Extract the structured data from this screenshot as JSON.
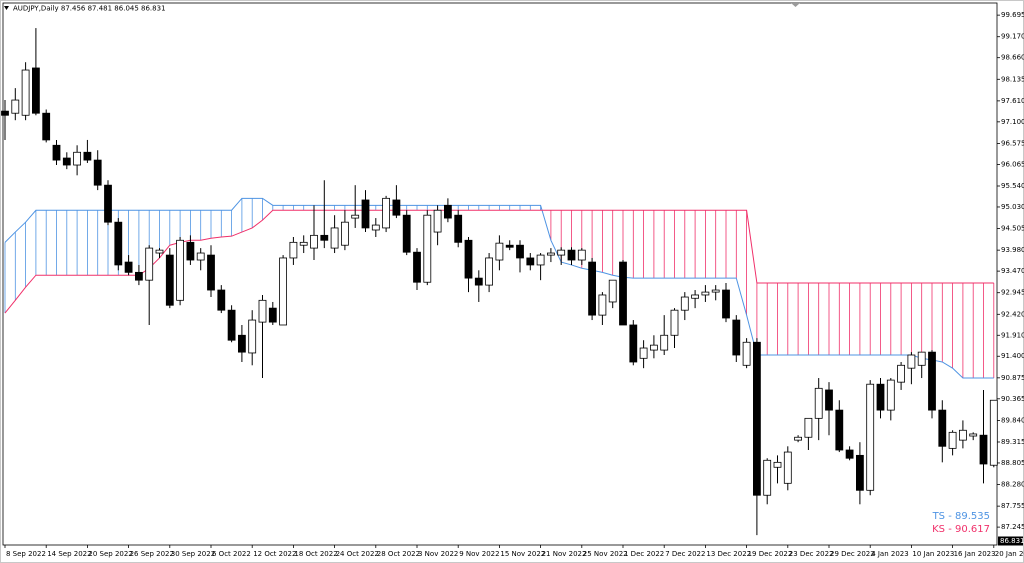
{
  "chart_data": {
    "type": "candlestick",
    "title": "AUDJPY,Daily  87.456 87.481 86.045 86.831",
    "categories": [
      "8 Sep 2022",
      null,
      null,
      null,
      "14 Sep 2022",
      null,
      null,
      null,
      "20 Sep 2022",
      null,
      null,
      null,
      "26 Sep 2022",
      null,
      null,
      null,
      "30 Sep 2022",
      null,
      null,
      null,
      "6 Oct 2022",
      null,
      null,
      null,
      "12 Oct 2022",
      null,
      null,
      null,
      "18 Oct 2022",
      null,
      null,
      null,
      "24 Oct 2022",
      null,
      null,
      null,
      "28 Oct 2022",
      null,
      null,
      null,
      "3 Nov 2022",
      null,
      null,
      null,
      "9 Nov 2022",
      null,
      null,
      null,
      "15 Nov 2022",
      null,
      null,
      null,
      "21 Nov 2022",
      null,
      null,
      null,
      "25 Nov 2022",
      null,
      null,
      null,
      "1 Dec 2022",
      null,
      null,
      null,
      "7 Dec 2022",
      null,
      null,
      null,
      "13 Dec 2022",
      null,
      null,
      null,
      "19 Dec 2022",
      null,
      null,
      null,
      "23 Dec 2022",
      null,
      null,
      null,
      "29 Dec 2022",
      null,
      null,
      null,
      "4 Jan 2023",
      null,
      null,
      null,
      "10 Jan 2023",
      null,
      null,
      null,
      "16 Jan 2023",
      null,
      null,
      null,
      "20 Jan 202"
    ],
    "ohlc": {
      "open": [
        97.36,
        97.31,
        97.26,
        98.41,
        97.31,
        96.53,
        96.22,
        96.05,
        96.36,
        96.17,
        95.56,
        94.66,
        93.69,
        93.44,
        93.25,
        93.91,
        93.86,
        92.76,
        94.17,
        93.74,
        93.86,
        93.01,
        92.52,
        91.91,
        91.48,
        92.23,
        92.57,
        92.16,
        93.79,
        94.1,
        94.03,
        94.34,
        94.03,
        94.1,
        94.76,
        95.2,
        94.47,
        94.52,
        95.2,
        94.83,
        93.93,
        93.2,
        94.42,
        95.07,
        94.83,
        94.22,
        93.3,
        93.13,
        93.74,
        94.1,
        94.1,
        93.79,
        93.62,
        93.86,
        93.86,
        93.98,
        93.74,
        93.69,
        92.4,
        92.72,
        93.69,
        92.16,
        91.35,
        91.55,
        91.55,
        91.91,
        92.52,
        92.81,
        92.89,
        92.96,
        93.01,
        92.28,
        91.18,
        91.74,
        88.02,
        88.7,
        88.31,
        89.36,
        89.43,
        89.89,
        90.58,
        90.09,
        89.12,
        88.99,
        88.14,
        90.72,
        90.09,
        90.77,
        91.11,
        91.18,
        91.5,
        90.09,
        89.16,
        89.36,
        89.46,
        89.48,
        88.75
      ],
      "high": [
        97.63,
        97.92,
        98.55,
        99.38,
        97.4,
        96.66,
        96.36,
        96.53,
        96.66,
        96.41,
        95.68,
        94.76,
        93.86,
        93.62,
        94.1,
        94.03,
        94.03,
        94.3,
        94.34,
        94.03,
        94.1,
        93.13,
        92.64,
        92.16,
        92.52,
        92.89,
        92.72,
        93.86,
        94.3,
        94.34,
        95.07,
        95.68,
        94.83,
        94.95,
        95.56,
        95.44,
        94.76,
        95.3,
        95.56,
        94.95,
        94.03,
        94.95,
        95.07,
        95.24,
        94.95,
        94.3,
        93.49,
        93.91,
        94.34,
        94.22,
        94.22,
        93.91,
        93.91,
        94.03,
        94.05,
        94.05,
        94.03,
        93.79,
        92.96,
        93.25,
        93.74,
        92.28,
        91.79,
        91.91,
        92.4,
        92.57,
        92.96,
        93.01,
        93.13,
        93.13,
        93.18,
        92.4,
        91.84,
        91.84,
        88.92,
        88.99,
        89.21,
        89.48,
        89.89,
        90.87,
        90.77,
        90.33,
        89.21,
        89.31,
        90.82,
        90.87,
        90.87,
        91.26,
        91.5,
        91.5,
        91.55,
        90.33,
        89.6,
        89.84,
        89.55,
        90.58,
        90.33
      ],
      "low": [
        96.66,
        97.14,
        97.14,
        97.26,
        96.6,
        96.05,
        95.95,
        95.8,
        96.1,
        95.44,
        94.59,
        93.49,
        93.37,
        93.13,
        92.16,
        93.79,
        92.57,
        92.64,
        93.62,
        93.49,
        92.84,
        92.45,
        91.74,
        91.26,
        91.18,
        90.87,
        92.16,
        92.16,
        93.62,
        93.91,
        93.74,
        94.03,
        93.91,
        93.98,
        94.52,
        94.42,
        94.3,
        94.42,
        94.76,
        93.86,
        93.01,
        93.13,
        94.1,
        94.66,
        94.05,
        92.96,
        92.72,
        92.96,
        93.49,
        93.98,
        93.44,
        93.49,
        93.25,
        93.69,
        93.62,
        93.62,
        93.62,
        92.28,
        92.16,
        92.57,
        92.16,
        91.18,
        91.11,
        91.35,
        91.43,
        91.6,
        92.28,
        92.57,
        92.72,
        92.76,
        92.23,
        91.26,
        91.11,
        87.05,
        87.8,
        88.31,
        88.14,
        89.31,
        89.12,
        89.36,
        89.48,
        89.07,
        88.87,
        87.8,
        88.02,
        89.89,
        89.84,
        90.58,
        90.72,
        90.87,
        89.89,
        88.82,
        88.99,
        89.16,
        89.36,
        88.31,
        88.7
      ],
      "close": [
        97.26,
        97.63,
        98.36,
        97.31,
        96.66,
        96.17,
        96.05,
        96.36,
        96.17,
        95.56,
        94.66,
        93.62,
        93.44,
        93.25,
        94.03,
        93.98,
        92.64,
        94.22,
        93.74,
        93.91,
        93.01,
        92.52,
        91.79,
        91.5,
        92.28,
        92.76,
        92.23,
        93.79,
        94.17,
        94.17,
        94.34,
        94.22,
        94.52,
        94.66,
        94.83,
        94.52,
        94.59,
        95.24,
        94.83,
        93.93,
        93.2,
        94.83,
        94.95,
        94.76,
        94.17,
        93.3,
        93.13,
        93.79,
        94.15,
        94.05,
        93.79,
        93.62,
        93.86,
        93.91,
        93.98,
        93.74,
        93.98,
        92.4,
        92.89,
        93.25,
        92.16,
        91.26,
        91.6,
        91.67,
        91.91,
        92.52,
        92.84,
        92.89,
        92.96,
        93.01,
        92.33,
        91.43,
        91.74,
        88.02,
        88.87,
        88.82,
        89.07,
        89.43,
        89.89,
        90.62,
        90.09,
        89.12,
        88.92,
        88.14,
        90.72,
        90.09,
        90.82,
        91.18,
        91.43,
        91.5,
        90.09,
        89.21,
        89.55,
        89.6,
        89.51,
        88.78,
        90.33
      ]
    },
    "up_color": "#ffffff",
    "down_color": "#000000",
    "outline_color": "#000000",
    "ichimoku": {
      "span_a": {
        "color": "#4f94e3",
        "values": [
          94.17,
          94.42,
          94.66,
          94.95,
          94.95,
          94.95,
          94.95,
          94.95,
          94.95,
          94.95,
          94.95,
          94.95,
          94.95,
          94.95,
          94.95,
          94.95,
          94.95,
          94.95,
          94.95,
          94.95,
          94.95,
          94.95,
          94.95,
          95.24,
          95.24,
          95.24,
          95.07,
          95.07,
          95.07,
          95.07,
          95.07,
          95.07,
          95.07,
          95.07,
          95.07,
          95.07,
          95.07,
          95.07,
          95.07,
          95.07,
          95.07,
          95.07,
          95.07,
          95.07,
          95.07,
          95.07,
          95.07,
          95.07,
          95.07,
          95.07,
          95.07,
          95.07,
          95.07,
          94.22,
          93.69,
          93.62,
          93.54,
          93.49,
          93.44,
          93.37,
          93.32,
          93.3,
          93.3,
          93.3,
          93.3,
          93.3,
          93.3,
          93.3,
          93.3,
          93.3,
          93.3,
          93.3,
          92.4,
          91.43,
          91.43,
          91.43,
          91.43,
          91.43,
          91.43,
          91.43,
          91.43,
          91.43,
          91.43,
          91.43,
          91.43,
          91.43,
          91.43,
          91.43,
          91.43,
          91.35,
          91.31,
          91.26,
          91.11,
          90.87,
          90.87,
          90.87,
          90.87
        ]
      },
      "span_b": {
        "color": "#f0306a",
        "values": [
          92.45,
          92.76,
          93.08,
          93.37,
          93.37,
          93.37,
          93.37,
          93.37,
          93.37,
          93.37,
          93.37,
          93.37,
          93.37,
          93.37,
          93.54,
          93.79,
          94.1,
          94.17,
          94.22,
          94.22,
          94.27,
          94.3,
          94.32,
          94.42,
          94.52,
          94.71,
          94.95,
          94.95,
          94.95,
          94.95,
          94.95,
          94.95,
          94.95,
          94.95,
          94.95,
          94.95,
          94.95,
          94.95,
          94.95,
          94.95,
          94.95,
          94.95,
          94.95,
          94.95,
          94.95,
          94.95,
          94.95,
          94.95,
          94.95,
          94.95,
          94.95,
          94.95,
          94.95,
          94.95,
          94.95,
          94.95,
          94.95,
          94.95,
          94.95,
          94.95,
          94.95,
          94.95,
          94.95,
          94.95,
          94.95,
          94.95,
          94.95,
          94.95,
          94.95,
          94.95,
          94.95,
          94.95,
          94.95,
          93.18,
          93.18,
          93.18,
          93.18,
          93.18,
          93.18,
          93.18,
          93.18,
          93.18,
          93.18,
          93.18,
          93.18,
          93.18,
          93.18,
          93.18,
          93.18,
          93.18,
          93.18,
          93.18,
          93.18,
          93.18,
          93.18,
          93.18,
          93.18
        ]
      }
    },
    "annotations": [
      {
        "text": "TS - 89.535",
        "color": "#4f94e3"
      },
      {
        "text": "KS - 90.617",
        "color": "#f0306a"
      }
    ],
    "last_price": 86.831,
    "ylim": [
      86.81,
      99.99
    ],
    "yticks": [
      99.695,
      {
        "value": 99.17,
        "label": "99.170"
      },
      {
        "value": 98.66,
        "label": "98.660"
      },
      98.135,
      {
        "value": 97.61,
        "label": "97.610"
      },
      {
        "value": 97.1,
        "label": "97.100"
      },
      96.575,
      96.065,
      {
        "value": 95.54,
        "label": "95.540"
      },
      {
        "value": 95.03,
        "label": "95.030"
      },
      94.505,
      {
        "value": 93.98,
        "label": "93.980"
      },
      {
        "value": 93.47,
        "label": "93.470"
      },
      92.945,
      {
        "value": 92.42,
        "label": "92.420"
      },
      {
        "value": 91.91,
        "label": "91.910"
      },
      {
        "value": 91.4,
        "label": "91.400"
      },
      90.875,
      90.365,
      {
        "value": 89.84,
        "label": "89.840"
      },
      89.315,
      88.805,
      {
        "value": 88.28,
        "label": "88.280"
      },
      87.755,
      87.245
    ]
  }
}
